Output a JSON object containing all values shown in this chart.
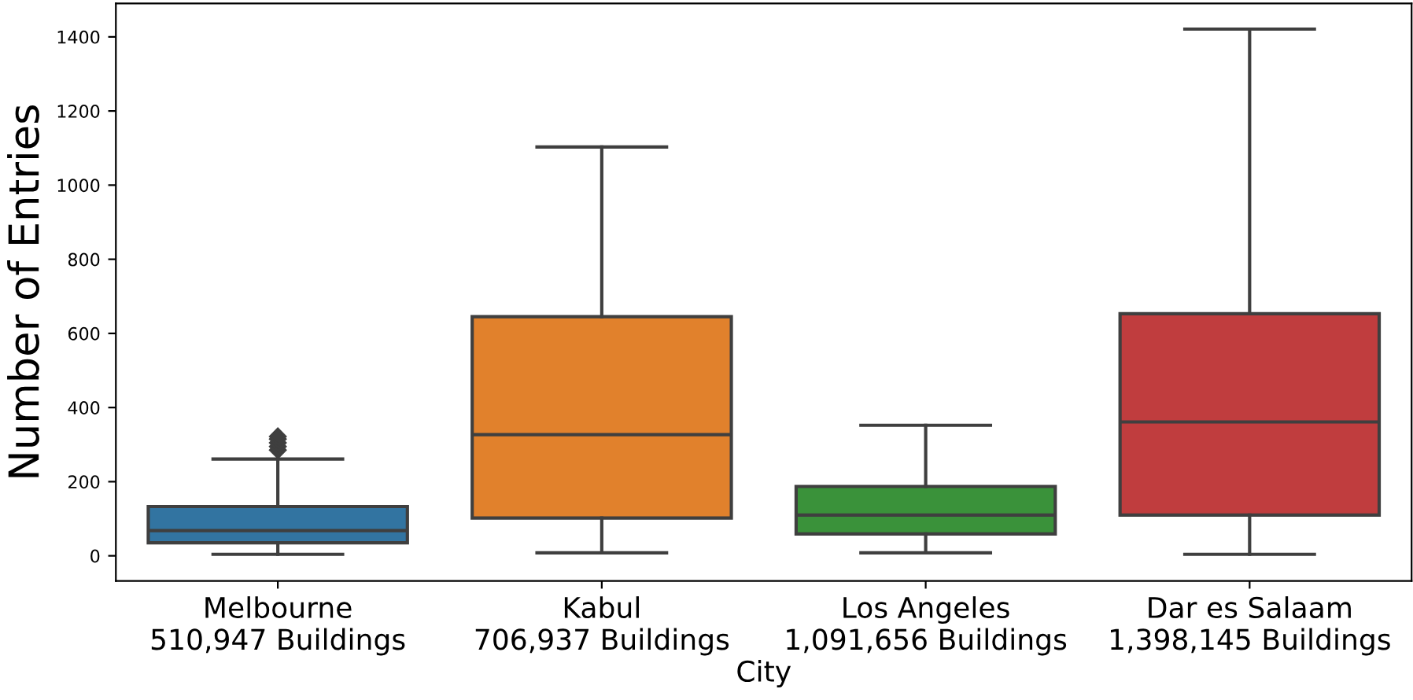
{
  "chart_data": {
    "type": "box",
    "xlabel": "City",
    "ylabel": "Number of Entries",
    "categories": [
      "Melbourne\n510,947 Buildings",
      "Kabul\n706,937 Buildings",
      "Los Angeles\n1,091,656 Buildings",
      "Dar es Salaam\n1,398,145 Buildings"
    ],
    "colors": [
      "#3274a1",
      "#e1812c",
      "#3a923a",
      "#c03d3e"
    ],
    "boxes": [
      {
        "low": 4,
        "q1": 35,
        "median": 68,
        "q3": 133,
        "high": 261,
        "outliers": [
          285,
          295,
          305,
          315,
          322
        ]
      },
      {
        "low": 8,
        "q1": 102,
        "median": 327,
        "q3": 645,
        "high": 1103
      },
      {
        "low": 8,
        "q1": 59,
        "median": 110,
        "q3": 187,
        "high": 352
      },
      {
        "low": 4,
        "q1": 110,
        "median": 361,
        "q3": 653,
        "high": 1421
      }
    ],
    "ylim": [
      -68,
      1490
    ],
    "yticks": [
      0,
      200,
      400,
      600,
      800,
      1000,
      1200,
      1400
    ],
    "grid": false
  }
}
